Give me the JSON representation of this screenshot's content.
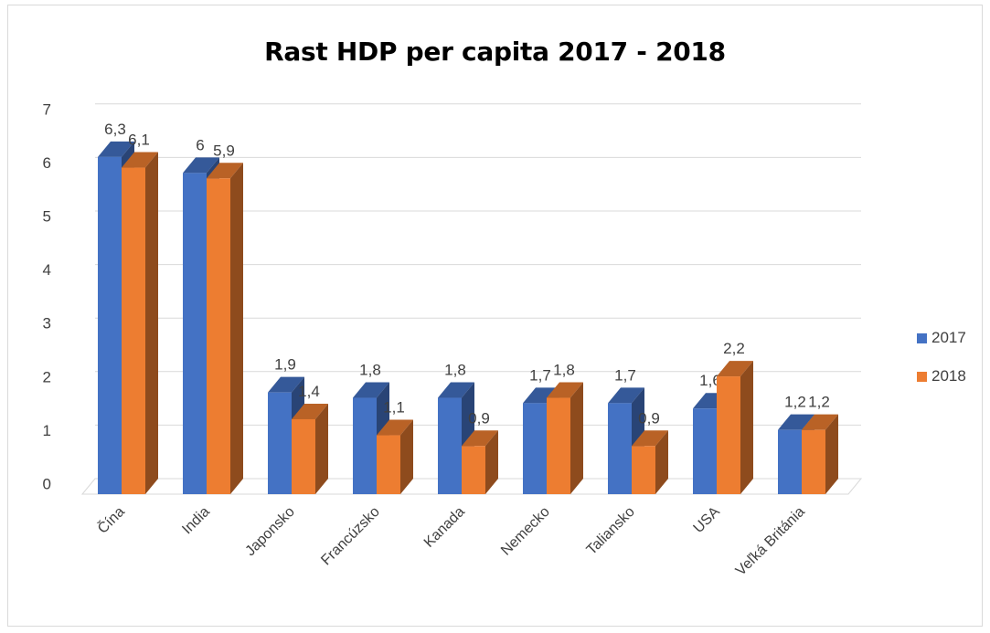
{
  "chart_data": {
    "type": "bar",
    "title": "Rast HDP per capita 2017 - 2018",
    "categories": [
      "Čína",
      "India",
      "Japonsko",
      "Francúzsko",
      "Kanada",
      "Nemecko",
      "Taliansko",
      "USA",
      "Veľká Británia"
    ],
    "series": [
      {
        "name": "2017",
        "color": "#4472c4",
        "values": [
          6.3,
          6,
          1.9,
          1.8,
          1.8,
          1.7,
          1.7,
          1.6,
          1.2
        ],
        "labels": [
          "6,3",
          "6",
          "1,9",
          "1,8",
          "1,8",
          "1,7",
          "1,7",
          "1,6",
          "1,2"
        ]
      },
      {
        "name": "2018",
        "color": "#ed7d31",
        "values": [
          6.1,
          5.9,
          1.4,
          1.1,
          0.9,
          1.8,
          0.9,
          2.2,
          1.2
        ],
        "labels": [
          "6,1",
          "5,9",
          "1,4",
          "1,1",
          "0,9",
          "1,8",
          "0,9",
          "2,2",
          "1,2"
        ]
      }
    ],
    "yticks": [
      "0",
      "1",
      "2",
      "3",
      "4",
      "5",
      "6",
      "7"
    ],
    "ylim": [
      0,
      7
    ],
    "grid": true,
    "legend_position": "right",
    "style": "3d-clustered-column"
  }
}
